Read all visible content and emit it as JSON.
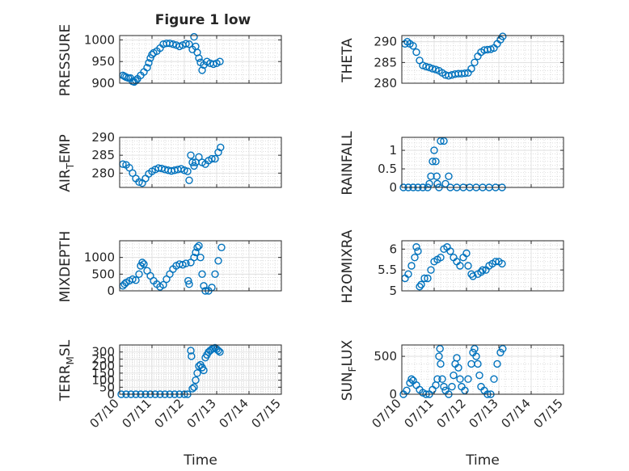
{
  "figure": {
    "title": "Figure 1 low",
    "marker_color": "#0072bd",
    "axis_color": "#262626"
  },
  "chart_data": [
    {
      "type": "scatter",
      "ylabel": "PRESSURE",
      "xlim": [
        "07/10",
        "07/15"
      ],
      "ylim": [
        900,
        1010
      ],
      "yticks": [
        "900",
        "950",
        "1000"
      ],
      "grid": true,
      "points": [
        [
          10.1,
          918
        ],
        [
          10.15,
          916
        ],
        [
          10.2,
          914
        ],
        [
          10.27,
          912
        ],
        [
          10.33,
          912
        ],
        [
          10.4,
          904
        ],
        [
          10.45,
          903
        ],
        [
          10.5,
          906
        ],
        [
          10.55,
          910
        ],
        [
          10.65,
          918
        ],
        [
          10.75,
          926
        ],
        [
          10.85,
          936
        ],
        [
          10.9,
          947
        ],
        [
          10.95,
          958
        ],
        [
          11.0,
          966
        ],
        [
          11.05,
          970
        ],
        [
          11.15,
          974
        ],
        [
          11.25,
          981
        ],
        [
          11.35,
          990
        ],
        [
          11.45,
          992
        ],
        [
          11.55,
          992
        ],
        [
          11.65,
          990
        ],
        [
          11.75,
          988
        ],
        [
          11.85,
          985
        ],
        [
          11.95,
          988
        ],
        [
          12.05,
          991
        ],
        [
          12.15,
          990
        ],
        [
          12.25,
          978
        ],
        [
          12.3,
          1007
        ],
        [
          12.35,
          985
        ],
        [
          12.4,
          971
        ],
        [
          12.45,
          958
        ],
        [
          12.5,
          948
        ],
        [
          12.55,
          930
        ],
        [
          12.6,
          942
        ],
        [
          12.7,
          950
        ],
        [
          12.8,
          946
        ],
        [
          12.9,
          944
        ],
        [
          13.0,
          946
        ],
        [
          13.1,
          950
        ]
      ]
    },
    {
      "type": "scatter",
      "ylabel": "THETA",
      "xlim": [
        "07/10",
        "07/15"
      ],
      "ylim": [
        280,
        291.5
      ],
      "yticks": [
        "280",
        "285",
        "290"
      ],
      "grid": true,
      "points": [
        [
          10.1,
          289.5
        ],
        [
          10.17,
          290
        ],
        [
          10.25,
          289.5
        ],
        [
          10.35,
          289
        ],
        [
          10.45,
          287.5
        ],
        [
          10.55,
          285.5
        ],
        [
          10.65,
          284.3
        ],
        [
          10.75,
          284
        ],
        [
          10.85,
          283.8
        ],
        [
          10.95,
          283.5
        ],
        [
          11.05,
          283.3
        ],
        [
          11.15,
          283
        ],
        [
          11.25,
          282.5
        ],
        [
          11.35,
          282
        ],
        [
          11.45,
          281.8
        ],
        [
          11.55,
          282
        ],
        [
          11.65,
          282.2
        ],
        [
          11.75,
          282.3
        ],
        [
          11.85,
          282.3
        ],
        [
          11.95,
          282.4
        ],
        [
          12.05,
          282.5
        ],
        [
          12.15,
          283.5
        ],
        [
          12.25,
          285
        ],
        [
          12.35,
          286.5
        ],
        [
          12.45,
          287.5
        ],
        [
          12.55,
          288
        ],
        [
          12.65,
          288.1
        ],
        [
          12.75,
          288.2
        ],
        [
          12.85,
          288.5
        ],
        [
          12.95,
          289.5
        ],
        [
          13.05,
          290.5
        ],
        [
          13.12,
          291.3
        ]
      ]
    },
    {
      "type": "scatter",
      "ylabel": "AIR_T_EMP",
      "xlim": [
        "07/10",
        "07/15"
      ],
      "ylim": [
        276,
        290
      ],
      "yticks": [
        "280",
        "285",
        "290"
      ],
      "grid": true,
      "points": [
        [
          10.1,
          282.5
        ],
        [
          10.2,
          282.3
        ],
        [
          10.3,
          281.5
        ],
        [
          10.4,
          280
        ],
        [
          10.5,
          278.5
        ],
        [
          10.6,
          277.5
        ],
        [
          10.7,
          277.2
        ],
        [
          10.8,
          278.5
        ],
        [
          10.9,
          279.8
        ],
        [
          11.0,
          280.5
        ],
        [
          11.1,
          281
        ],
        [
          11.2,
          281.4
        ],
        [
          11.3,
          281.3
        ],
        [
          11.4,
          281
        ],
        [
          11.5,
          280.8
        ],
        [
          11.6,
          280.6
        ],
        [
          11.7,
          280.8
        ],
        [
          11.8,
          281
        ],
        [
          11.9,
          281.2
        ],
        [
          12.0,
          280.8
        ],
        [
          12.1,
          280.5
        ],
        [
          12.15,
          278
        ],
        [
          12.2,
          285
        ],
        [
          12.25,
          283
        ],
        [
          12.3,
          282
        ],
        [
          12.35,
          283
        ],
        [
          12.45,
          284.5
        ],
        [
          12.55,
          283
        ],
        [
          12.65,
          282.5
        ],
        [
          12.75,
          283.5
        ],
        [
          12.85,
          284
        ],
        [
          12.95,
          284
        ],
        [
          13.05,
          285.8
        ],
        [
          13.12,
          287.2
        ]
      ]
    },
    {
      "type": "scatter",
      "ylabel": "RAINFALL",
      "xlim": [
        "07/10",
        "07/15"
      ],
      "ylim": [
        0,
        1.35
      ],
      "yticks": [
        "0",
        "0.5",
        "1"
      ],
      "grid": true,
      "points": [
        [
          10.05,
          0
        ],
        [
          10.2,
          0
        ],
        [
          10.35,
          0
        ],
        [
          10.5,
          0
        ],
        [
          10.65,
          0
        ],
        [
          10.8,
          0
        ],
        [
          10.85,
          0.1
        ],
        [
          10.9,
          0.3
        ],
        [
          10.95,
          0.7
        ],
        [
          11.0,
          1
        ],
        [
          11.05,
          0.7
        ],
        [
          11.08,
          0.3
        ],
        [
          11.1,
          0.1
        ],
        [
          11.15,
          0
        ],
        [
          11.2,
          1.25
        ],
        [
          11.3,
          1.25
        ],
        [
          11.35,
          0.1
        ],
        [
          11.45,
          0.3
        ],
        [
          11.5,
          0
        ],
        [
          11.7,
          0
        ],
        [
          11.9,
          0
        ],
        [
          12.1,
          0
        ],
        [
          12.3,
          0
        ],
        [
          12.5,
          0
        ],
        [
          12.7,
          0
        ],
        [
          12.9,
          0
        ],
        [
          13.1,
          0
        ]
      ]
    },
    {
      "type": "scatter",
      "ylabel": "MIXDEPTH",
      "xlim": [
        "07/10",
        "07/15"
      ],
      "ylim": [
        0,
        1500
      ],
      "yticks": [
        "0",
        "500",
        "1000"
      ],
      "grid": true,
      "points": [
        [
          10.1,
          150
        ],
        [
          10.15,
          200
        ],
        [
          10.2,
          250
        ],
        [
          10.3,
          300
        ],
        [
          10.4,
          350
        ],
        [
          10.5,
          320
        ],
        [
          10.6,
          500
        ],
        [
          10.65,
          750
        ],
        [
          10.7,
          850
        ],
        [
          10.75,
          800
        ],
        [
          10.85,
          600
        ],
        [
          10.95,
          450
        ],
        [
          11.05,
          300
        ],
        [
          11.15,
          200
        ],
        [
          11.25,
          120
        ],
        [
          11.35,
          180
        ],
        [
          11.45,
          350
        ],
        [
          11.55,
          500
        ],
        [
          11.65,
          650
        ],
        [
          11.75,
          750
        ],
        [
          11.85,
          800
        ],
        [
          11.95,
          780
        ],
        [
          12.05,
          820
        ],
        [
          12.12,
          300
        ],
        [
          12.15,
          200
        ],
        [
          12.2,
          850
        ],
        [
          12.3,
          1000
        ],
        [
          12.35,
          1150
        ],
        [
          12.4,
          1300
        ],
        [
          12.45,
          1350
        ],
        [
          12.5,
          1000
        ],
        [
          12.55,
          500
        ],
        [
          12.6,
          150
        ],
        [
          12.65,
          0
        ],
        [
          12.75,
          0
        ],
        [
          12.85,
          100
        ],
        [
          12.95,
          500
        ],
        [
          13.05,
          900
        ],
        [
          13.15,
          1300
        ]
      ]
    },
    {
      "type": "scatter",
      "ylabel": "H2OMIXRA",
      "xlim": [
        "07/10",
        "07/15"
      ],
      "ylim": [
        5,
        6.2
      ],
      "yticks": [
        "5",
        "5.5",
        "6"
      ],
      "grid": true,
      "points": [
        [
          10.1,
          5.3
        ],
        [
          10.2,
          5.4
        ],
        [
          10.3,
          5.6
        ],
        [
          10.4,
          5.8
        ],
        [
          10.45,
          6.05
        ],
        [
          10.5,
          5.95
        ],
        [
          10.55,
          5.1
        ],
        [
          10.6,
          5.15
        ],
        [
          10.7,
          5.3
        ],
        [
          10.8,
          5.3
        ],
        [
          10.9,
          5.5
        ],
        [
          11.0,
          5.7
        ],
        [
          11.1,
          5.75
        ],
        [
          11.2,
          5.8
        ],
        [
          11.3,
          6
        ],
        [
          11.4,
          6.05
        ],
        [
          11.5,
          5.95
        ],
        [
          11.6,
          5.8
        ],
        [
          11.7,
          5.7
        ],
        [
          11.8,
          5.6
        ],
        [
          11.9,
          5.8
        ],
        [
          12.0,
          5.9
        ],
        [
          12.05,
          5.6
        ],
        [
          12.15,
          5.4
        ],
        [
          12.2,
          5.35
        ],
        [
          12.35,
          5.4
        ],
        [
          12.45,
          5.45
        ],
        [
          12.5,
          5.5
        ],
        [
          12.6,
          5.5
        ],
        [
          12.7,
          5.6
        ],
        [
          12.8,
          5.65
        ],
        [
          12.9,
          5.7
        ],
        [
          13.0,
          5.7
        ],
        [
          13.1,
          5.65
        ]
      ]
    },
    {
      "type": "scatter",
      "ylabel": "TERR_M_SL",
      "xlim": [
        "07/10",
        "07/15"
      ],
      "ylim": [
        0,
        350
      ],
      "yticks": [
        "0",
        "50",
        "100",
        "150",
        "200",
        "250",
        "300"
      ],
      "grid": true,
      "xticks": [
        "07/10",
        "07/11",
        "07/12",
        "07/13",
        "07/14",
        "07/15"
      ],
      "xlabel": "Time",
      "points": [
        [
          10.05,
          0
        ],
        [
          10.2,
          0
        ],
        [
          10.35,
          0
        ],
        [
          10.5,
          0
        ],
        [
          10.65,
          0
        ],
        [
          10.8,
          0
        ],
        [
          10.95,
          0
        ],
        [
          11.1,
          0
        ],
        [
          11.25,
          0
        ],
        [
          11.4,
          0
        ],
        [
          11.55,
          0
        ],
        [
          11.7,
          0
        ],
        [
          11.85,
          0
        ],
        [
          12.0,
          0
        ],
        [
          12.1,
          0
        ],
        [
          12.2,
          310
        ],
        [
          12.22,
          270
        ],
        [
          12.25,
          40
        ],
        [
          12.3,
          50
        ],
        [
          12.35,
          100
        ],
        [
          12.4,
          150
        ],
        [
          12.45,
          200
        ],
        [
          12.5,
          210
        ],
        [
          12.55,
          190
        ],
        [
          12.6,
          170
        ],
        [
          12.65,
          260
        ],
        [
          12.7,
          280
        ],
        [
          12.75,
          300
        ],
        [
          12.8,
          310
        ],
        [
          12.85,
          320
        ],
        [
          12.9,
          325
        ],
        [
          12.95,
          330
        ],
        [
          13.0,
          320
        ],
        [
          13.05,
          310
        ],
        [
          13.1,
          300
        ]
      ]
    },
    {
      "type": "scatter",
      "ylabel": "SUN_F_LUX",
      "xlim": [
        "07/10",
        "07/15"
      ],
      "ylim": [
        0,
        650
      ],
      "yticks": [
        "0",
        "500"
      ],
      "grid": true,
      "xticks": [
        "07/10",
        "07/11",
        "07/12",
        "07/13",
        "07/14",
        "07/15"
      ],
      "xlabel": "Time",
      "points": [
        [
          10.05,
          0
        ],
        [
          10.15,
          50
        ],
        [
          10.25,
          150
        ],
        [
          10.3,
          200
        ],
        [
          10.35,
          180
        ],
        [
          10.45,
          120
        ],
        [
          10.55,
          60
        ],
        [
          10.65,
          20
        ],
        [
          10.75,
          0
        ],
        [
          10.85,
          0
        ],
        [
          10.95,
          60
        ],
        [
          11.05,
          120
        ],
        [
          11.1,
          200
        ],
        [
          11.15,
          500
        ],
        [
          11.18,
          600
        ],
        [
          11.2,
          400
        ],
        [
          11.25,
          200
        ],
        [
          11.3,
          100
        ],
        [
          11.35,
          50
        ],
        [
          11.45,
          0
        ],
        [
          11.55,
          100
        ],
        [
          11.6,
          250
        ],
        [
          11.65,
          400
        ],
        [
          11.7,
          480
        ],
        [
          11.75,
          350
        ],
        [
          11.8,
          200
        ],
        [
          11.85,
          100
        ],
        [
          11.95,
          50
        ],
        [
          12.05,
          200
        ],
        [
          12.15,
          400
        ],
        [
          12.2,
          550
        ],
        [
          12.25,
          600
        ],
        [
          12.3,
          500
        ],
        [
          12.35,
          400
        ],
        [
          12.4,
          250
        ],
        [
          12.45,
          100
        ],
        [
          12.55,
          50
        ],
        [
          12.65,
          0
        ],
        [
          12.75,
          0
        ],
        [
          12.85,
          200
        ],
        [
          12.95,
          400
        ],
        [
          13.05,
          550
        ],
        [
          13.12,
          600
        ]
      ]
    }
  ]
}
